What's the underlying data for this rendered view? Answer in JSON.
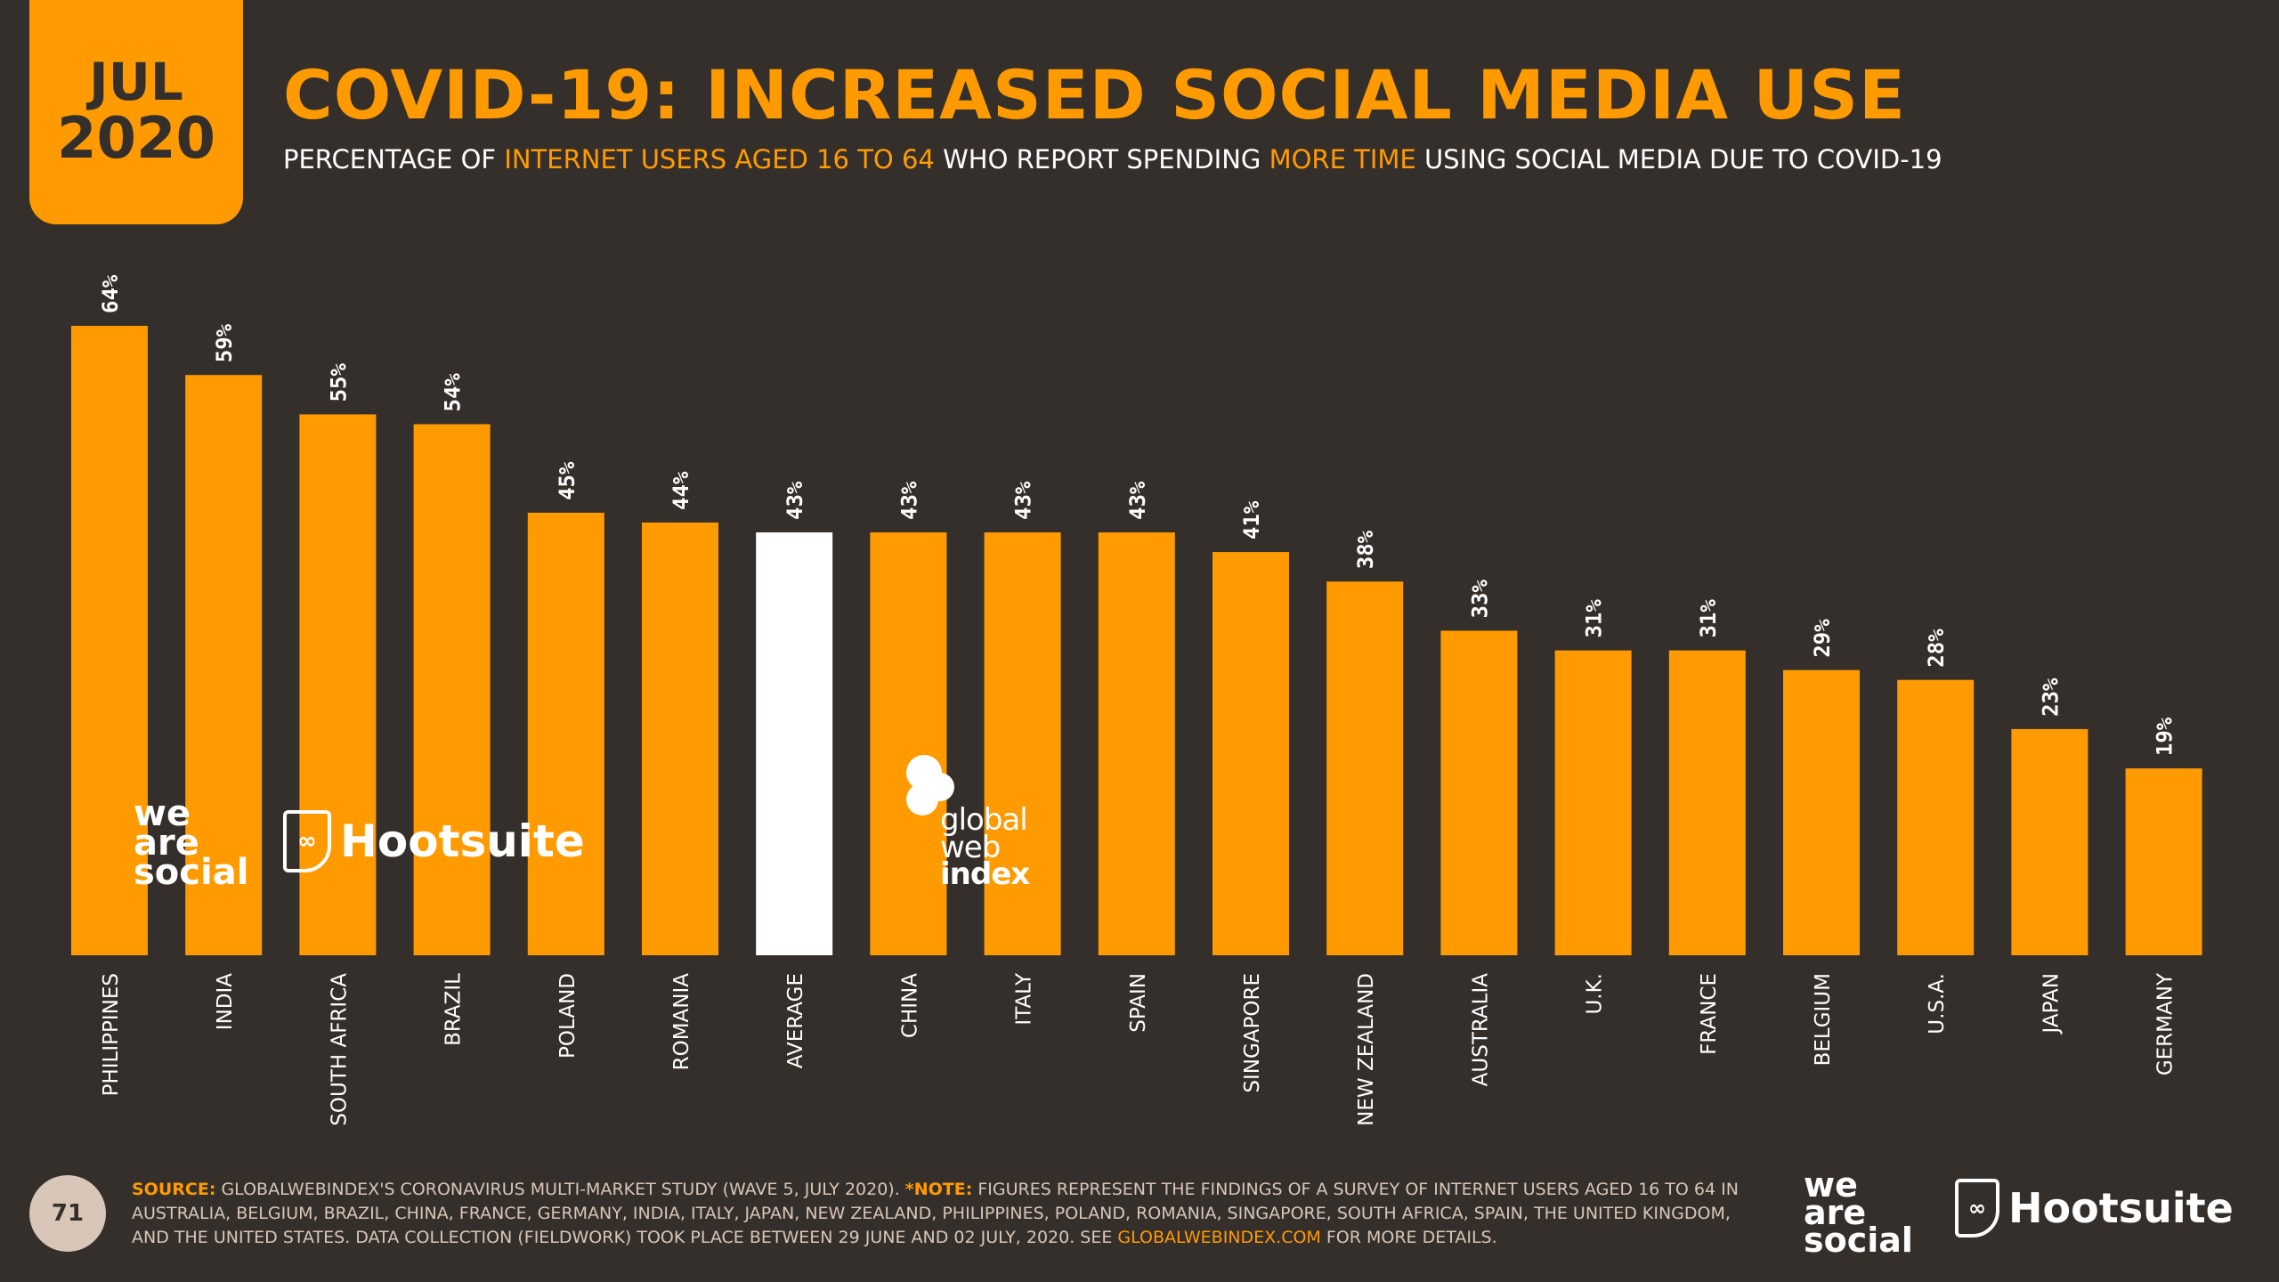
{
  "badge": {
    "month": "JUL",
    "year": "2020"
  },
  "title": "COVID-19: INCREASED SOCIAL MEDIA USE",
  "subtitle": {
    "part1": "PERCENTAGE OF ",
    "hl1": "INTERNET USERS AGED 16 TO 64",
    "part2": " WHO REPORT SPENDING ",
    "hl2": "MORE TIME",
    "part3": " USING SOCIAL MEDIA DUE TO COVID-19"
  },
  "colors": {
    "background": "#352f2b",
    "accent": "#ff9b00",
    "highlight": "#ffffff",
    "muted": "#d8c6b8"
  },
  "chart_data": {
    "type": "bar",
    "title": "COVID-19: INCREASED SOCIAL MEDIA USE",
    "xlabel": "",
    "ylabel": "",
    "ylim": [
      0,
      64
    ],
    "categories": [
      "PHILIPPINES",
      "INDIA",
      "SOUTH AFRICA",
      "BRAZIL",
      "POLAND",
      "ROMANIA",
      "AVERAGE",
      "CHINA",
      "ITALY",
      "SPAIN",
      "SINGAPORE",
      "NEW ZEALAND",
      "AUSTRALIA",
      "U.K.",
      "FRANCE",
      "BELGIUM",
      "U.S.A.",
      "JAPAN",
      "GERMANY"
    ],
    "values": [
      64,
      59,
      55,
      54,
      45,
      44,
      43,
      43,
      43,
      43,
      41,
      38,
      33,
      31,
      31,
      29,
      28,
      23,
      19
    ],
    "value_labels": [
      "64%",
      "59%",
      "55%",
      "54%",
      "45%",
      "44%",
      "43%",
      "43%",
      "43%",
      "43%",
      "41%",
      "38%",
      "33%",
      "31%",
      "31%",
      "29%",
      "28%",
      "23%",
      "19%"
    ],
    "highlight_category": "AVERAGE",
    "grid": false
  },
  "logos": {
    "was_line1": "we",
    "was_line2": "are",
    "was_line3": "social",
    "hootsuite": "Hootsuite",
    "gwi_line1": "global",
    "gwi_line2": "web",
    "gwi_line3": "index"
  },
  "footer": {
    "page_number": "71",
    "source_label": "SOURCE:",
    "source_text": " GLOBALWEBINDEX'S CORONAVIRUS MULTI-MARKET STUDY (WAVE 5, JULY 2020). ",
    "note_label": "*NOTE:",
    "note_text": " FIGURES REPRESENT THE FINDINGS OF A SURVEY OF INTERNET USERS AGED 16 TO 64 IN AUSTRALIA, BELGIUM, BRAZIL, CHINA, FRANCE, GERMANY, INDIA, ITALY, JAPAN, NEW ZEALAND, PHILIPPINES, POLAND, ROMANIA, SINGAPORE, SOUTH AFRICA, SPAIN, THE UNITED KINGDOM, AND THE UNITED STATES. DATA COLLECTION (FIELDWORK) TOOK PLACE BETWEEN 29 JUNE AND 02 JULY, 2020. SEE ",
    "link": "GLOBALWEBINDEX.COM",
    "tail": " FOR MORE DETAILS."
  }
}
